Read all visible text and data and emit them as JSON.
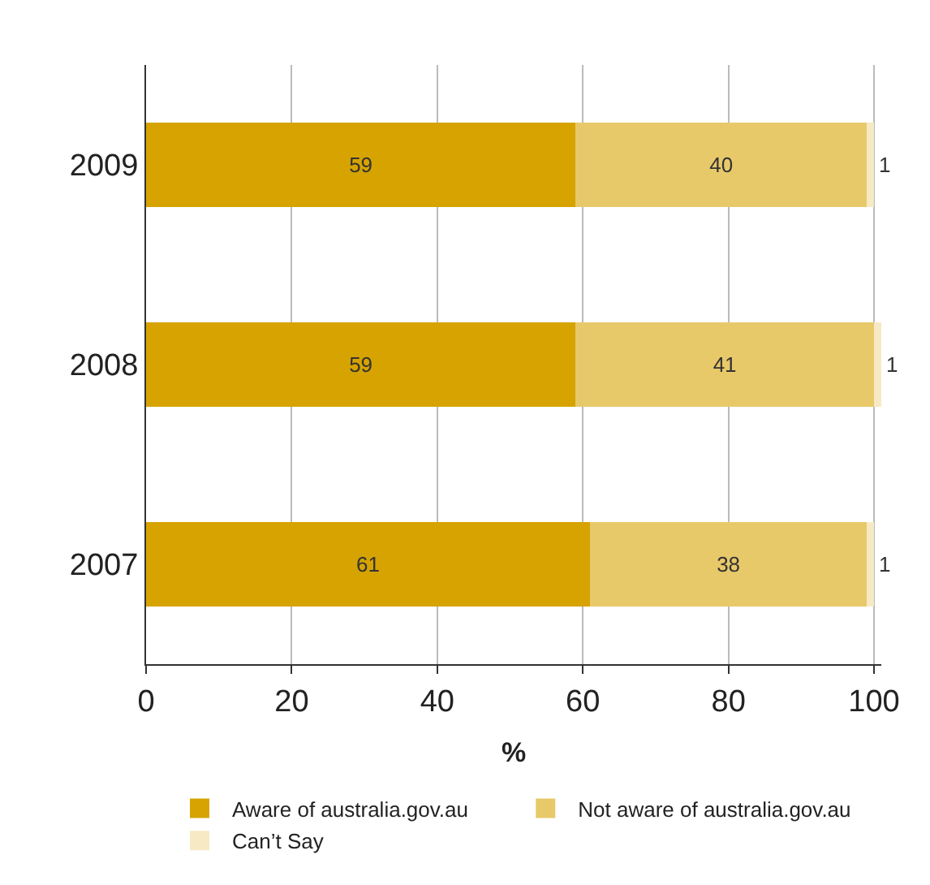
{
  "chart_data": {
    "type": "bar",
    "orientation": "horizontal",
    "stacked": true,
    "xlabel": "%",
    "categories": [
      "2009",
      "2008",
      "2007"
    ],
    "series": [
      {
        "name": "Aware of australia.gov.au",
        "color": "#d6a300",
        "values": [
          59,
          59,
          61
        ]
      },
      {
        "name": "Not aware of australia.gov.au",
        "color": "#e8c96a",
        "values": [
          40,
          41,
          38
        ]
      },
      {
        "name": "Can’t Say",
        "color": "#f6e9c4",
        "values": [
          1,
          1,
          1
        ]
      }
    ],
    "xlim": [
      0,
      101
    ],
    "xticks": [
      0,
      20,
      40,
      60,
      80,
      100
    ],
    "grid": "x",
    "legend": "bottom",
    "data_labels": true
  }
}
